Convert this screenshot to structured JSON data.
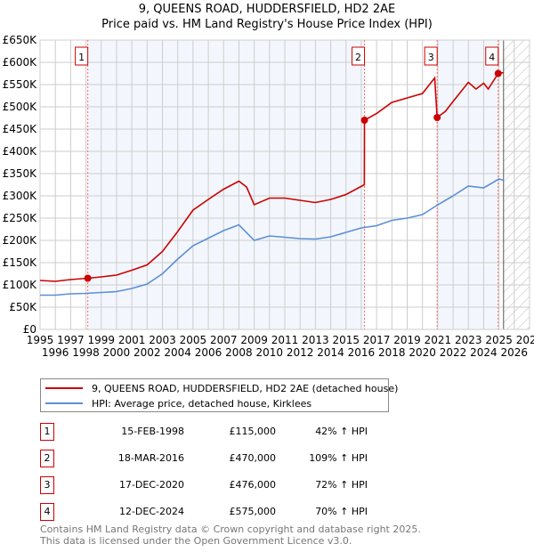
{
  "chart_data": {
    "type": "line",
    "title": "9, QUEENS ROAD, HUDDERSFIELD, HD2 2AE",
    "subtitle": "Price paid vs. HM Land Registry's House Price Index (HPI)",
    "xlim": [
      1995,
      2027
    ],
    "ylim": [
      0,
      650000
    ],
    "yticks": [
      {
        "v": 0,
        "l": "£0"
      },
      {
        "v": 50000,
        "l": "£50K"
      },
      {
        "v": 100000,
        "l": "£100K"
      },
      {
        "v": 150000,
        "l": "£150K"
      },
      {
        "v": 200000,
        "l": "£200K"
      },
      {
        "v": 250000,
        "l": "£250K"
      },
      {
        "v": 300000,
        "l": "£300K"
      },
      {
        "v": 350000,
        "l": "£350K"
      },
      {
        "v": 400000,
        "l": "£400K"
      },
      {
        "v": 450000,
        "l": "£450K"
      },
      {
        "v": 500000,
        "l": "£500K"
      },
      {
        "v": 550000,
        "l": "£550K"
      },
      {
        "v": 600000,
        "l": "£600K"
      },
      {
        "v": 650000,
        "l": "£650K"
      }
    ],
    "xticks": [
      "1995",
      "1996",
      "1997",
      "1998",
      "1999",
      "2000",
      "2001",
      "2002",
      "2003",
      "2004",
      "2005",
      "2006",
      "2007",
      "2008",
      "2009",
      "2010",
      "2011",
      "2012",
      "2013",
      "2014",
      "2015",
      "2016",
      "2017",
      "2018",
      "2019",
      "2020",
      "2021",
      "2022",
      "2023",
      "2024",
      "2025",
      "2026",
      "2027"
    ],
    "forecast_start": 2025.3,
    "series": [
      {
        "name": "9, QUEENS ROAD, HUDDERSFIELD, HD2 2AE (detached house)",
        "color": "#cc0000",
        "x": [
          1995,
          1996,
          1997,
          1998.12,
          1999,
          2000,
          2001,
          2002,
          2003,
          2004,
          2005,
          2006,
          2007,
          2008,
          2008.5,
          2009,
          2010,
          2011,
          2012,
          2013,
          2014,
          2015,
          2016.2,
          2016.21,
          2017,
          2018,
          2019,
          2020,
          2020.8,
          2020.96,
          2021.5,
          2022,
          2023,
          2023.5,
          2024,
          2024.3,
          2024.95,
          2025.3
        ],
        "y": [
          110000,
          108000,
          112000,
          115000,
          118000,
          122000,
          133000,
          145000,
          175000,
          220000,
          268000,
          292000,
          315000,
          333000,
          320000,
          280000,
          295000,
          295000,
          290000,
          285000,
          292000,
          303000,
          325000,
          470000,
          485000,
          510000,
          520000,
          530000,
          565000,
          476000,
          490000,
          512000,
          555000,
          540000,
          553000,
          540000,
          575000,
          577000
        ]
      },
      {
        "name": "HPI: Average price, detached house, Kirklees",
        "color": "#5b8fd6",
        "x": [
          1995,
          1996,
          1997,
          1998,
          1999,
          2000,
          2001,
          2002,
          2003,
          2004,
          2005,
          2006,
          2007,
          2008,
          2009,
          2010,
          2011,
          2012,
          2013,
          2014,
          2015,
          2016,
          2017,
          2018,
          2019,
          2020,
          2021,
          2022,
          2023,
          2024,
          2025,
          2025.3
        ],
        "y": [
          77000,
          77000,
          80000,
          81000,
          83000,
          85000,
          92000,
          102000,
          125000,
          158000,
          188000,
          205000,
          222000,
          235000,
          200000,
          210000,
          207000,
          204000,
          203000,
          208000,
          218000,
          228000,
          233000,
          245000,
          250000,
          258000,
          280000,
          300000,
          322000,
          318000,
          338000,
          335000
        ]
      }
    ],
    "sales": [
      {
        "n": "1",
        "x": 1998.12,
        "y": 115000,
        "date": "15-FEB-1998",
        "price": "£115,000",
        "hpi": "42% ↑ HPI"
      },
      {
        "n": "2",
        "x": 2016.21,
        "y": 470000,
        "date": "18-MAR-2016",
        "price": "£470,000",
        "hpi": "109% ↑ HPI"
      },
      {
        "n": "3",
        "x": 2020.96,
        "y": 476000,
        "date": "17-DEC-2020",
        "price": "£476,000",
        "hpi": "72% ↑ HPI"
      },
      {
        "n": "4",
        "x": 2024.95,
        "y": 575000,
        "date": "12-DEC-2024",
        "price": "£575,000",
        "hpi": "70% ↑ HPI"
      }
    ],
    "legend_position": "below"
  },
  "footer": {
    "line1": "Contains HM Land Registry data © Crown copyright and database right 2025.",
    "line2": "This data is licensed under the Open Government Licence v3.0."
  }
}
